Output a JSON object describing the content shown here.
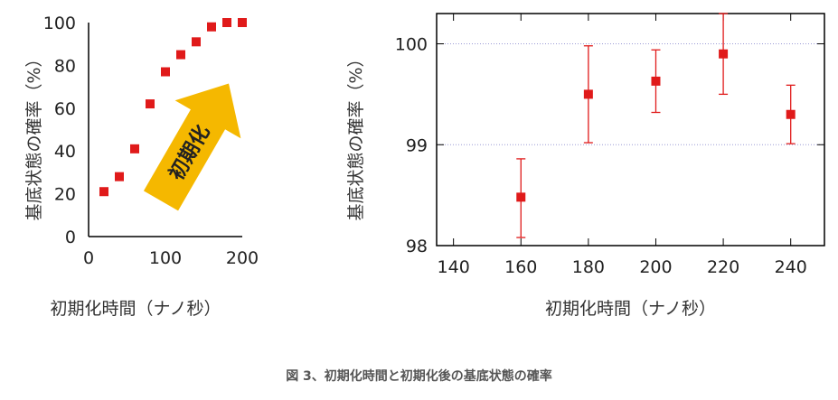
{
  "caption": "図 3、初期化時間と初期化後の基底状態の確率",
  "colors": {
    "marker": "#e01a1a",
    "arrow": "#f5b800",
    "axis": "#000000",
    "grid": "#9b9bd6"
  },
  "chart_data": [
    {
      "type": "scatter",
      "xlabel": "初期化時間（ナノ秒）",
      "ylabel": "基底状態の確率（%）",
      "xlim": [
        0,
        200
      ],
      "ylim": [
        0,
        100
      ],
      "xticks": [
        0,
        100,
        200
      ],
      "yticks": [
        0,
        20,
        40,
        60,
        80,
        100
      ],
      "grid": false,
      "annotation": "初期化",
      "series": [
        {
          "x": [
            20,
            40,
            60,
            80,
            100,
            120,
            140,
            160,
            180,
            200
          ],
          "y": [
            21,
            28,
            41,
            62,
            77,
            85,
            91,
            98,
            100,
            100
          ]
        }
      ]
    },
    {
      "type": "scatter",
      "xlabel": "初期化時間（ナノ秒）",
      "ylabel": "基底状態の確率（%）",
      "xlim": [
        135,
        250
      ],
      "ylim": [
        98,
        100.3
      ],
      "xticks": [
        140,
        160,
        180,
        200,
        220,
        240
      ],
      "yticks": [
        98,
        99,
        100
      ],
      "grid": true,
      "series": [
        {
          "x": [
            160,
            180,
            200,
            220,
            240
          ],
          "y": [
            98.48,
            99.5,
            99.63,
            99.9,
            99.3
          ],
          "err_low": [
            98.08,
            99.02,
            99.32,
            99.5,
            99.01
          ],
          "err_high": [
            98.86,
            99.98,
            99.94,
            100.3,
            99.59
          ]
        }
      ]
    }
  ]
}
